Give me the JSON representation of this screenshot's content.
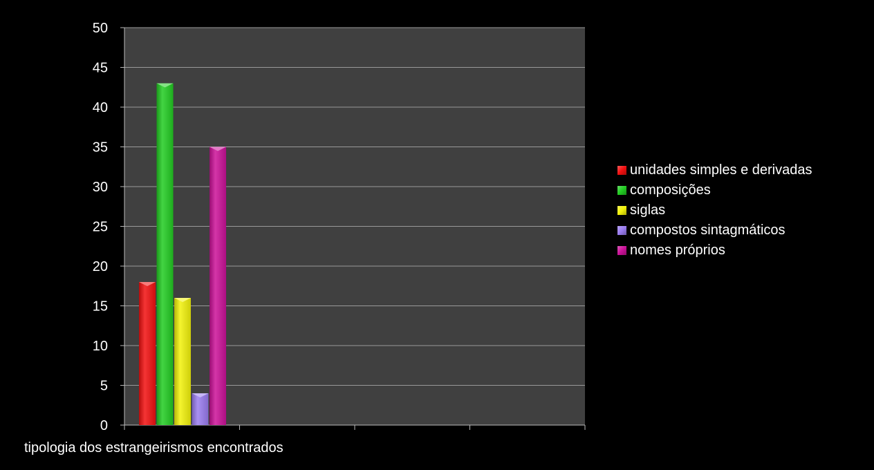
{
  "chart_data": {
    "type": "bar",
    "categories": [
      "tipologia dos estrangeirismos encontrados"
    ],
    "series": [
      {
        "name": "unidades simples e derivadas",
        "values": [
          18
        ],
        "color": "#f21010"
      },
      {
        "name": "composições",
        "values": [
          43
        ],
        "color": "#22cc22"
      },
      {
        "name": "siglas",
        "values": [
          16
        ],
        "color": "#f2f20a"
      },
      {
        "name": "compostos sintagmáticos",
        "values": [
          4
        ],
        "color": "#9a7cf0"
      },
      {
        "name": "nomes próprios",
        "values": [
          35
        ],
        "color": "#cc1199"
      }
    ],
    "ylim": [
      0,
      50
    ],
    "yticks": [
      "0",
      "5",
      "10",
      "15",
      "20",
      "25",
      "30",
      "35",
      "40",
      "45",
      "50"
    ],
    "grid": true,
    "legend_position": "right",
    "plot_background": "#404040"
  }
}
